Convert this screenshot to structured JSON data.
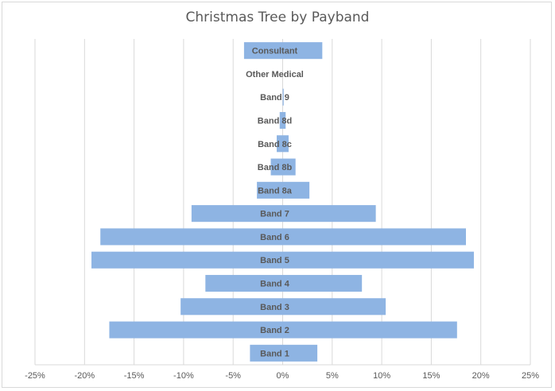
{
  "chart_data": {
    "type": "bar",
    "orientation": "horizontal",
    "title": "Christmas Tree by Payband",
    "categories": [
      "Band 1",
      "Band 2",
      "Band 3",
      "Band 4",
      "Band 5",
      "Band 6",
      "Band 7",
      "Band 8a",
      "Band 8b",
      "Band 8c",
      "Band 8d",
      "Band 9",
      "Other Medical",
      "Consultant"
    ],
    "series": [
      {
        "values": [
          -3.3,
          -17.5,
          -10.3,
          -7.8,
          -19.3,
          -18.4,
          -9.2,
          -2.6,
          -1.2,
          -0.6,
          -0.3,
          0.0,
          0.0,
          -3.9
        ]
      },
      {
        "values": [
          3.5,
          17.6,
          10.4,
          8.0,
          19.3,
          18.5,
          9.4,
          2.7,
          1.3,
          0.6,
          0.3,
          0.1,
          0.0,
          4.0
        ]
      }
    ],
    "xlim": [
      -25,
      25
    ],
    "xticks": [
      -25,
      -20,
      -15,
      -10,
      -5,
      0,
      5,
      10,
      15,
      20,
      25
    ],
    "xtick_labels": [
      "-25%",
      "-20%",
      "-15%",
      "-10%",
      "-5%",
      "0%",
      "5%",
      "10%",
      "15%",
      "20%",
      "25%"
    ],
    "grid": true,
    "bar_color": "#8eb4e3",
    "gridline_color": "#d9d9d9"
  }
}
